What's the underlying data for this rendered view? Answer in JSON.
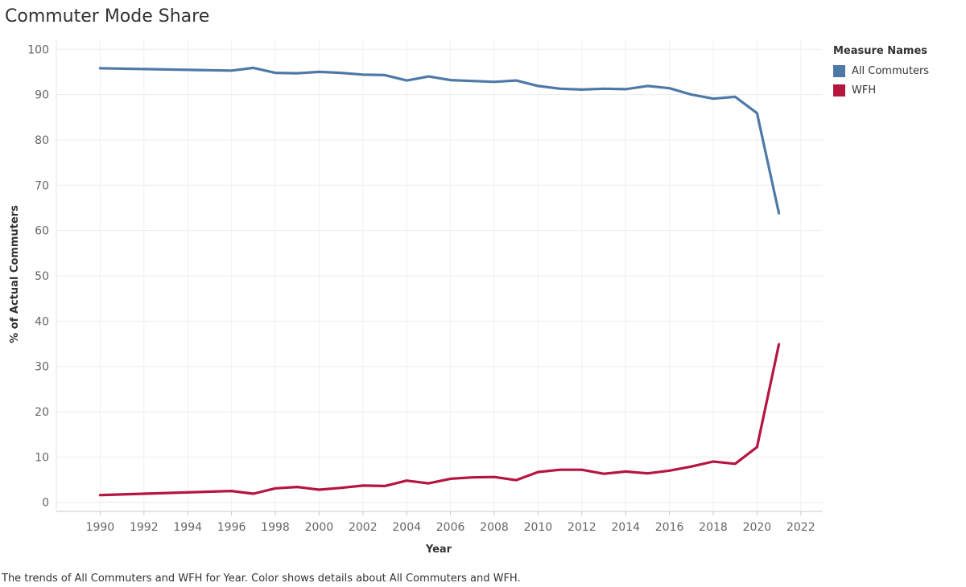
{
  "chart_data": {
    "type": "line",
    "title": "Commuter Mode Share",
    "xlabel": "Year",
    "ylabel": "% of Actual Commuters",
    "xlim": [
      1988,
      2023
    ],
    "ylim": [
      -2,
      102
    ],
    "x_ticks": [
      1990,
      1992,
      1994,
      1996,
      1998,
      2000,
      2002,
      2004,
      2006,
      2008,
      2010,
      2012,
      2014,
      2016,
      2018,
      2020,
      2022
    ],
    "y_ticks": [
      0,
      10,
      20,
      30,
      40,
      50,
      60,
      70,
      80,
      90,
      100
    ],
    "grid": true,
    "legend_title": "Measure Names",
    "legend_position": "top-right",
    "series": [
      {
        "name": "All Commuters",
        "color": "#4e79a7",
        "x": [
          1990,
          1996,
          1997,
          1998,
          1999,
          2000,
          2001,
          2002,
          2003,
          2004,
          2005,
          2006,
          2007,
          2008,
          2009,
          2010,
          2011,
          2012,
          2013,
          2014,
          2015,
          2016,
          2017,
          2018,
          2019,
          2020,
          2021
        ],
        "values": [
          95.8,
          95.3,
          95.9,
          94.8,
          94.7,
          95.0,
          94.8,
          94.4,
          94.3,
          93.1,
          94.0,
          93.2,
          93.0,
          92.8,
          93.1,
          91.9,
          91.3,
          91.1,
          91.3,
          91.2,
          91.9,
          91.4,
          90.0,
          89.1,
          89.5,
          85.9,
          63.8
        ]
      },
      {
        "name": "WFH",
        "color": "#b5153f",
        "x": [
          1990,
          1996,
          1997,
          1998,
          1999,
          2000,
          2001,
          2002,
          2003,
          2004,
          2005,
          2006,
          2007,
          2008,
          2009,
          2010,
          2011,
          2012,
          2013,
          2014,
          2015,
          2016,
          2017,
          2018,
          2019,
          2020,
          2021
        ],
        "values": [
          1.6,
          2.5,
          1.9,
          3.1,
          3.4,
          2.8,
          3.2,
          3.7,
          3.6,
          4.8,
          4.2,
          5.2,
          5.5,
          5.6,
          4.9,
          6.7,
          7.2,
          7.2,
          6.3,
          6.8,
          6.4,
          7.0,
          7.9,
          9.0,
          8.5,
          12.2,
          34.9
        ]
      }
    ],
    "caption": "The trends of All Commuters and WFH for Year.  Color shows details about All Commuters and WFH."
  }
}
